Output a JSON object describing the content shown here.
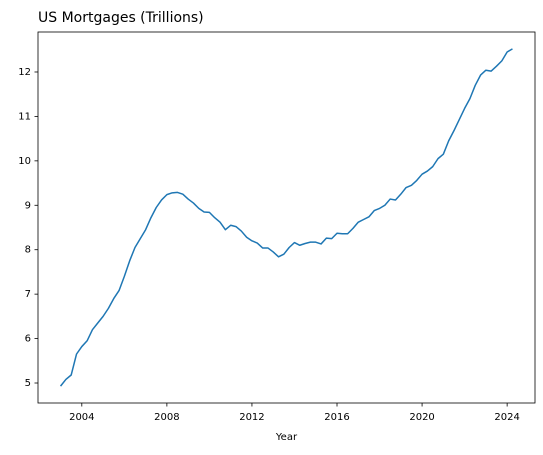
{
  "chart_data": {
    "type": "line",
    "title": "US Mortgages (Trillions)",
    "xlabel": "Year",
    "x": [
      2003.0,
      2003.25,
      2003.5,
      2003.75,
      2004.0,
      2004.25,
      2004.5,
      2004.75,
      2005.0,
      2005.25,
      2005.5,
      2005.75,
      2006.0,
      2006.25,
      2006.5,
      2006.75,
      2007.0,
      2007.25,
      2007.5,
      2007.75,
      2008.0,
      2008.25,
      2008.5,
      2008.75,
      2009.0,
      2009.25,
      2009.5,
      2009.75,
      2010.0,
      2010.25,
      2010.5,
      2010.75,
      2011.0,
      2011.25,
      2011.5,
      2011.75,
      2012.0,
      2012.25,
      2012.5,
      2012.75,
      2013.0,
      2013.25,
      2013.5,
      2013.75,
      2014.0,
      2014.25,
      2014.5,
      2014.75,
      2015.0,
      2015.25,
      2015.5,
      2015.75,
      2016.0,
      2016.25,
      2016.5,
      2016.75,
      2017.0,
      2017.25,
      2017.5,
      2017.75,
      2018.0,
      2018.25,
      2018.5,
      2018.75,
      2019.0,
      2019.25,
      2019.5,
      2019.75,
      2020.0,
      2020.25,
      2020.5,
      2020.75,
      2021.0,
      2021.25,
      2021.5,
      2021.75,
      2022.0,
      2022.25,
      2022.5,
      2022.75,
      2023.0,
      2023.25,
      2023.5,
      2023.75,
      2024.0,
      2024.25
    ],
    "series": [
      {
        "name": "US Mortgages",
        "color": "#1f77b4",
        "values": [
          4.93,
          5.08,
          5.18,
          5.65,
          5.82,
          5.95,
          6.2,
          6.35,
          6.5,
          6.68,
          6.9,
          7.08,
          7.4,
          7.75,
          8.05,
          8.25,
          8.45,
          8.72,
          8.95,
          9.12,
          9.24,
          9.28,
          9.29,
          9.25,
          9.14,
          9.05,
          8.93,
          8.85,
          8.84,
          8.72,
          8.62,
          8.45,
          8.55,
          8.52,
          8.42,
          8.28,
          8.2,
          8.15,
          8.04,
          8.04,
          7.95,
          7.84,
          7.9,
          8.05,
          8.16,
          8.1,
          8.14,
          8.17,
          8.17,
          8.13,
          8.26,
          8.25,
          8.37,
          8.36,
          8.36,
          8.48,
          8.62,
          8.68,
          8.74,
          8.88,
          8.93,
          9.0,
          9.14,
          9.12,
          9.25,
          9.4,
          9.45,
          9.56,
          9.7,
          9.77,
          9.87,
          10.05,
          10.15,
          10.45,
          10.68,
          10.93,
          11.18,
          11.4,
          11.7,
          11.93,
          12.04,
          12.02,
          12.13,
          12.25,
          12.45,
          12.52
        ]
      }
    ],
    "xlim": [
      2001.94,
      2025.31
    ],
    "xticks": [
      2004,
      2008,
      2012,
      2016,
      2020,
      2024
    ],
    "ylim": [
      4.55,
      12.9
    ],
    "yticks": [
      5,
      6,
      7,
      8,
      9,
      10,
      11,
      12
    ],
    "grid": false
  }
}
